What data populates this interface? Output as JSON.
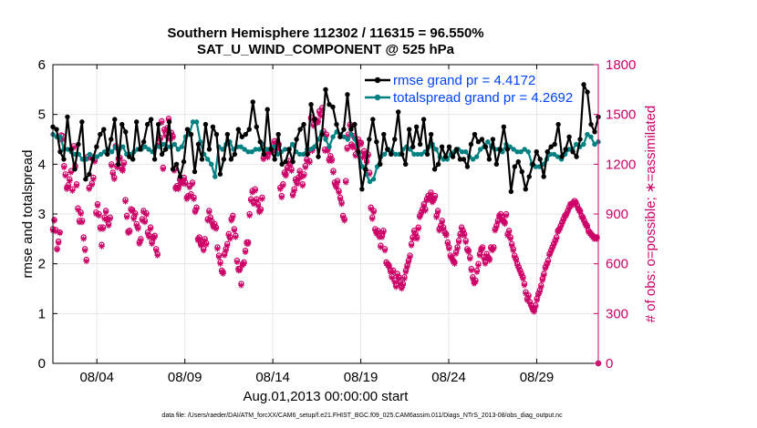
{
  "chart_data": {
    "type": "line",
    "title_line1": "Southern Hemisphere 112302 / 116315 = 96.550%",
    "title_line2": "SAT_U_WIND_COMPONENT @ 525 hPa",
    "xlabel": "Aug.01,2013 00:00:00 start",
    "ylabel_left": "rmse and totalspread",
    "ylabel_right": "# of obs: o=possible; ∗=assimilated",
    "footer": "data file: /Users/raeder/DAI/ATM_forcXX/CAM6_setup/f.e21.FHIST_BGC.f09_025.CAM6assim.011/Diags_NTrS_2013-08/obs_diag_output.nc",
    "xlim": [
      1.0,
      32.0
    ],
    "ylim_left": [
      0,
      6
    ],
    "ylim_right": [
      0,
      1800
    ],
    "x_ticks": [
      3.5,
      8.5,
      13.5,
      18.5,
      23.5,
      28.5
    ],
    "x_tick_labels": [
      "08/04",
      "08/09",
      "08/14",
      "08/19",
      "08/24",
      "08/29"
    ],
    "y_left_ticks": [
      "0",
      "1",
      "2",
      "3",
      "4",
      "5",
      "6"
    ],
    "y_right_ticks": [
      "0",
      "300",
      "600",
      "900",
      "1200",
      "1500",
      "1800"
    ],
    "colors": {
      "rmse": "#000000",
      "spread": "#008080",
      "obs": "#cc0066",
      "legend_text": "#0044ff",
      "grid": "#e6e6e6",
      "right_axis": "#cc0066"
    },
    "series": [
      {
        "name": "rmse grand pr = 4.4172",
        "axis": "left",
        "values": [
          4.75,
          4.7,
          4.25,
          4.1,
          4.95,
          4.3,
          3.9,
          4.4,
          4.85,
          3.7,
          3.8,
          4.1,
          4.35,
          4.6,
          4.7,
          4.2,
          4.5,
          4.9,
          4.0,
          4.8,
          4.65,
          4.15,
          4.1,
          4.85,
          4.3,
          4.45,
          4.8,
          4.9,
          4.1,
          4.8,
          4.2,
          4.3,
          4.85,
          3.9,
          4.0,
          3.75,
          4.05,
          4.7,
          4.6,
          3.85,
          4.4,
          4.1,
          4.8,
          4.3,
          4.75,
          4.6,
          3.8,
          4.1,
          4.6,
          4.1,
          4.2,
          4.7,
          4.55,
          4.6,
          4.7,
          5.25,
          4.75,
          4.45,
          4.2,
          5.1,
          4.3,
          4.1,
          4.6,
          4.0,
          4.05,
          4.3,
          4.05,
          4.5,
          4.7,
          4.8,
          4.2,
          5.2,
          4.9,
          4.15,
          4.6,
          5.5,
          5.2,
          5.15,
          4.8,
          4.55,
          4.7,
          5.4,
          4.7,
          4.8,
          4.25,
          3.5,
          3.9,
          4.5,
          4.9,
          4.45,
          4.0,
          4.6,
          4.3,
          4.2,
          4.5,
          5.05,
          4.2,
          4.0,
          4.7,
          4.35,
          4.75,
          4.4,
          4.9,
          4.2,
          4.6,
          3.9,
          4.0,
          4.35,
          4.15,
          4.35,
          4.15,
          4.3,
          4.1,
          4.1,
          3.95,
          4.4,
          4.6,
          4.45,
          4.5,
          4.35,
          4.1,
          4.5,
          4.0,
          4.3,
          4.75,
          4.3,
          3.45,
          3.95,
          4.05,
          3.85,
          3.5,
          3.75,
          4.0,
          4.25,
          4.1,
          3.75,
          4.25,
          4.35,
          4.4,
          4.8,
          4.15,
          4.3,
          4.55,
          4.25,
          4.15,
          4.5,
          5.6,
          5.45,
          4.8,
          4.65,
          4.95
        ]
      },
      {
        "name": "totalspread grand pr = 4.2692",
        "axis": "left",
        "values": [
          4.6,
          4.55,
          4.55,
          4.3,
          4.3,
          4.25,
          4.2,
          4.2,
          4.1,
          4.1,
          4.2,
          4.15,
          4.15,
          4.2,
          4.25,
          4.3,
          4.25,
          4.35,
          4.3,
          4.35,
          4.2,
          4.2,
          4.25,
          4.3,
          4.3,
          4.35,
          4.3,
          4.25,
          4.35,
          4.35,
          4.4,
          4.35,
          4.35,
          4.4,
          4.3,
          4.35,
          4.55,
          4.6,
          4.85,
          4.85,
          4.45,
          4.2,
          4.1,
          4.0,
          3.75,
          4.35,
          4.3,
          4.4,
          4.45,
          4.3,
          4.35,
          4.35,
          4.3,
          4.25,
          4.25,
          4.3,
          4.3,
          4.4,
          4.3,
          4.3,
          4.35,
          4.2,
          4.25,
          4.3,
          4.3,
          4.4,
          4.25,
          4.2,
          4.2,
          4.3,
          4.3,
          4.35,
          4.5,
          4.65,
          4.5,
          4.35,
          4.55,
          4.65,
          4.6,
          4.55,
          4.5,
          4.6,
          4.5,
          4.2,
          3.95,
          3.8,
          3.65,
          3.7,
          3.95,
          4.15,
          4.2,
          4.3,
          4.25,
          4.2,
          4.2,
          4.3,
          4.35,
          4.3,
          4.2,
          4.2,
          4.2,
          4.25,
          4.35,
          4.4,
          4.3,
          4.15,
          4.1,
          4.1,
          4.2,
          4.25,
          4.3,
          4.25,
          4.25,
          4.15,
          4.1,
          4.15,
          4.3,
          4.35,
          4.45,
          4.35,
          4.3,
          4.3,
          4.25,
          4.4,
          4.35,
          4.3,
          4.25,
          4.25,
          4.3,
          4.25,
          4.0,
          3.95,
          3.95,
          4.0,
          4.1,
          4.2,
          4.2,
          4.15,
          4.1,
          4.2,
          4.3,
          4.3,
          4.4,
          4.35,
          4.4,
          4.6,
          4.55,
          4.4,
          4.45
        ]
      },
      {
        "name": "obs possible",
        "axis": "right",
        "marker": "o",
        "values": [
          810,
          865,
          805,
          690,
          735,
          790,
          1375,
          1370,
          1190,
          1140,
          1060,
          1075,
          1110,
          1160,
          1050,
          1310,
          1190,
          1080,
          935,
          860,
          910,
          860,
          760,
          690,
          625,
          1245,
          1060,
          1250,
          1085,
          1120,
          1225,
          910,
          960,
          900,
          820,
          715,
          820,
          880,
          920,
          870,
          840,
          880,
          1200,
          1150,
          1120,
          1310,
          1190,
          1235,
          1240,
          1180,
          1170,
          1210,
          985,
          890,
          795,
          800,
          930,
          925,
          880,
          905,
          840,
          820,
          730,
          750,
          870,
          920,
          860,
          905,
          790,
          770,
          820,
          730,
          760,
          770,
          690,
          660,
          1330,
          1360,
          1460,
          1180,
          1410,
          1380,
          1420,
          1475,
          1360,
          1390,
          1370,
          1170,
          1060,
          1070,
          1060,
          1110,
          1090,
          1100,
          1120,
          1090,
          1000,
          1010,
          1070,
          1020,
          1090,
          1000,
          920,
          940,
          750,
          760,
          720,
          730,
          690,
          750,
          725,
          870,
          920,
          880,
          855,
          830,
          840,
          820,
          700,
          650,
          610,
          560,
          550,
          660,
          690,
          720,
          780,
          760,
          870,
          890,
          810,
          770,
          620,
          570,
          570,
          480,
          600,
          610,
          680,
          730,
          730,
          900,
          990,
          1040,
          970,
          1050,
          990,
          960,
          920,
          930,
          1000,
          1240,
          1260,
          1270,
          1250,
          1280,
          1290,
          1280,
          1310,
          1340,
          1330,
          1300,
          1320,
          1060,
          1010,
          1080,
          1150,
          1140,
          1180,
          1220,
          1200,
          1170,
          1020,
          1050,
          1110,
          1090,
          1120,
          1160,
          1130,
          1080,
          1140,
          1190,
          1230,
          1280,
          1220,
          1480,
          1290,
          1440,
          1470,
          1460,
          1460,
          1520,
          1500,
          1540,
          1400,
          1290,
          1380,
          1290,
          1230,
          1250,
          1230,
          1160,
          1090,
          1070,
          1100,
          1040,
          1000,
          970,
          890,
          870,
          1100,
          1300,
          1380,
          1440,
          1320,
          1310,
          1370,
          1260,
          1300,
          1350,
          1330,
          1330,
          1250,
          1280,
          1260,
          1220,
          1260,
          1150,
          940,
          880,
          920,
          810,
          790,
          800,
          770,
          710,
          770,
          800,
          690,
          610,
          600,
          590,
          560,
          525,
          560,
          500,
          470,
          540,
          520,
          490,
          460,
          480,
          520,
          560,
          590,
          620,
          650,
          720,
          760,
          800,
          780,
          760,
          820,
          890,
          910,
          930,
          960,
          930,
          990,
          1010,
          1000,
          1030,
          980,
          990,
          1010,
          890,
          920,
          810,
          830,
          860,
          820,
          790,
          780,
          730,
          700,
          650,
          640,
          620,
          610,
          670,
          700,
          740,
          780,
          820,
          800,
          780,
          740,
          690,
          680,
          640,
          570,
          520,
          490,
          500,
          560,
          600,
          660,
          690,
          700,
          640,
          610,
          660,
          640,
          630,
          700,
          690,
          700,
          810,
          830,
          860,
          890,
          900,
          880,
          860,
          850,
          900,
          780,
          800,
          760,
          720,
          690,
          650,
          630,
          600,
          580,
          560,
          540,
          520,
          480,
          430,
          390,
          410,
          370,
          350,
          330,
          320,
          350,
          390,
          420,
          440,
          470,
          510,
          540,
          580,
          600,
          620,
          660,
          680,
          700,
          720,
          740,
          760,
          800,
          810,
          830,
          850,
          870,
          890,
          900,
          920,
          940,
          960,
          960,
          970,
          980,
          970,
          950,
          930,
          920,
          890,
          880,
          860,
          840,
          830,
          800,
          790,
          780,
          770,
          760,
          760,
          760,
          0
        ]
      },
      {
        "name": "obs assimilated",
        "axis": "right",
        "marker": "*",
        "values": [
          800,
          860,
          795,
          685,
          725,
          785,
          1345,
          1350,
          1180,
          1130,
          1050,
          1065,
          1100,
          1150,
          1040,
          1300,
          1180,
          1070,
          925,
          850,
          900,
          850,
          750,
          680,
          615,
          1235,
          1050,
          1240,
          1075,
          1110,
          1215,
          900,
          950,
          890,
          810,
          705,
          810,
          870,
          910,
          860,
          830,
          870,
          1190,
          1140,
          1110,
          1300,
          1180,
          1225,
          1230,
          1170,
          1160,
          1200,
          975,
          880,
          785,
          790,
          920,
          915,
          870,
          895,
          830,
          810,
          720,
          740,
          860,
          910,
          850,
          895,
          780,
          760,
          810,
          720,
          750,
          760,
          680,
          650,
          1320,
          1350,
          1450,
          1170,
          1400,
          1370,
          1410,
          1465,
          1350,
          1380,
          1360,
          1160,
          1050,
          1060,
          1050,
          1100,
          1080,
          1090,
          1110,
          1080,
          990,
          1000,
          1060,
          1010,
          1080,
          990,
          910,
          930,
          740,
          750,
          710,
          720,
          680,
          740,
          715,
          860,
          910,
          870,
          845,
          820,
          830,
          810,
          690,
          640,
          600,
          550,
          540,
          650,
          680,
          710,
          770,
          750,
          860,
          880,
          800,
          760,
          610,
          560,
          560,
          470,
          590,
          600,
          670,
          720,
          720,
          890,
          980,
          1030,
          960,
          1040,
          980,
          950,
          910,
          920,
          990,
          1230,
          1250,
          1260,
          1240,
          1270,
          1280,
          1270,
          1300,
          1330,
          1320,
          1290,
          1310,
          1050,
          1000,
          1070,
          1140,
          1130,
          1170,
          1210,
          1190,
          1160,
          1010,
          1040,
          1100,
          1080,
          1110,
          1150,
          1120,
          1070,
          1130,
          1180,
          1220,
          1270,
          1210,
          1470,
          1280,
          1430,
          1460,
          1450,
          1450,
          1510,
          1490,
          1530,
          1390,
          1280,
          1370,
          1280,
          1220,
          1240,
          1220,
          1150,
          1080,
          1060,
          1090,
          1030,
          990,
          960,
          880,
          860,
          1090,
          1290,
          1370,
          1430,
          1310,
          1300,
          1360,
          1250,
          1290,
          1340,
          1320,
          1320,
          1240,
          1270,
          1250,
          1210,
          1250,
          1140,
          930,
          870,
          910,
          800,
          780,
          790,
          760,
          700,
          760,
          790,
          680,
          600,
          590,
          580,
          550,
          515,
          550,
          490,
          460,
          530,
          510,
          480,
          450,
          470,
          510,
          550,
          580,
          610,
          640,
          710,
          750,
          790,
          770,
          750,
          810,
          880,
          900,
          920,
          950,
          920,
          980,
          1000,
          990,
          1020,
          970,
          980,
          1000,
          880,
          910,
          800,
          820,
          850,
          810,
          780,
          770,
          720,
          690,
          640,
          630,
          610,
          600,
          660,
          690,
          730,
          770,
          810,
          790,
          770,
          730,
          680,
          670,
          630,
          560,
          510,
          480,
          490,
          550,
          590,
          650,
          680,
          690,
          630,
          600,
          650,
          630,
          620,
          690,
          680,
          690,
          800,
          820,
          850,
          880,
          890,
          870,
          850,
          840,
          890,
          770,
          790,
          750,
          710,
          680,
          640,
          620,
          590,
          570,
          550,
          530,
          510,
          470,
          420,
          380,
          400,
          360,
          340,
          320,
          310,
          340,
          380,
          410,
          430,
          460,
          500,
          530,
          570,
          590,
          610,
          650,
          670,
          690,
          710,
          730,
          750,
          790,
          800,
          820,
          840,
          860,
          880,
          890,
          910,
          930,
          950,
          950,
          960,
          970,
          960,
          940,
          920,
          910,
          880,
          870,
          850,
          830,
          820,
          790,
          780,
          770,
          760,
          750,
          750,
          750,
          0
        ]
      }
    ]
  }
}
